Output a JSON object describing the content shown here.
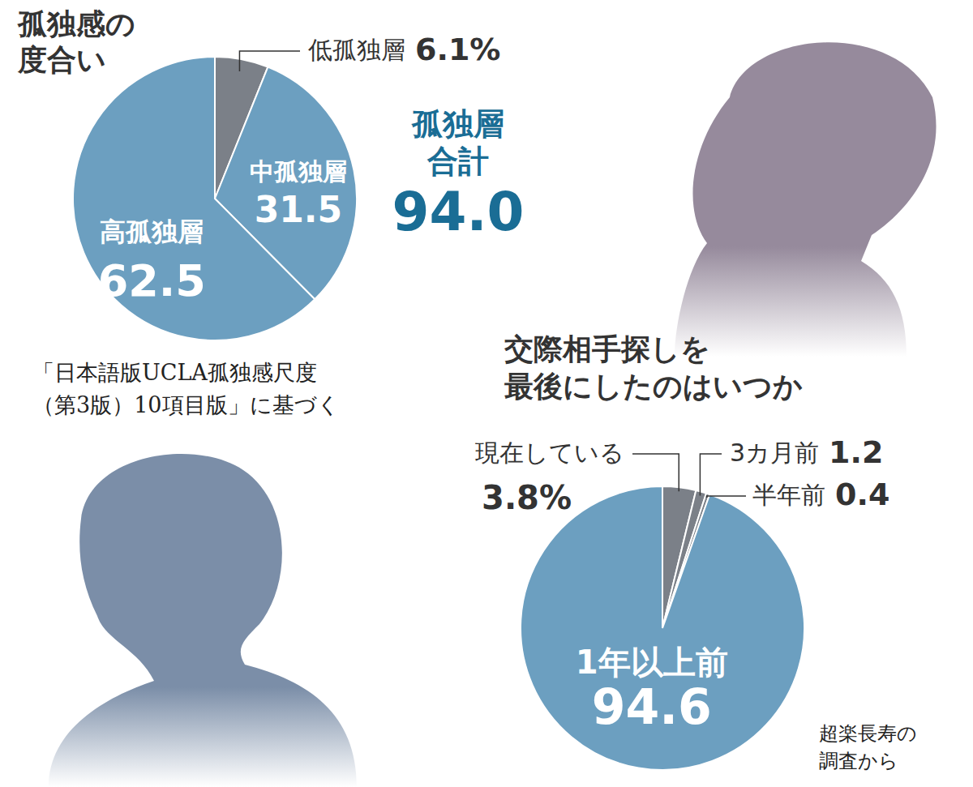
{
  "chart_data": [
    {
      "type": "pie",
      "title": "孤独感の度合い",
      "categories": [
        "低孤独層",
        "中孤独層",
        "高孤独層"
      ],
      "values": [
        6.1,
        31.5,
        62.5
      ],
      "value_labels": [
        "6.1%",
        "31.5",
        "62.5"
      ],
      "colors": [
        "#7b8088",
        "#6c9fc0",
        "#6c9fc0"
      ],
      "data_labels": true,
      "annotations": [
        {
          "text": "孤独層合計",
          "value": 94,
          "value_label": "94.0"
        },
        {
          "text": "「日本語版UCLA孤独感尺度（第3版）10項目版」に基づく"
        }
      ]
    },
    {
      "type": "pie",
      "title": "交際相手探しを最後にしたのはいつか",
      "categories": [
        "現在している",
        "3カ月前",
        "半年前",
        "1年以上前"
      ],
      "values": [
        3.8,
        1.2,
        0.4,
        94.6
      ],
      "value_labels": [
        "3.8%",
        "1.2",
        "0.4",
        "94.6"
      ],
      "colors": [
        "#7b8088",
        "#7b8088",
        "#7b8088",
        "#6c9fc0"
      ],
      "data_labels": true,
      "annotations": [
        {
          "text": "超楽長寿の調査から"
        }
      ]
    }
  ]
}
